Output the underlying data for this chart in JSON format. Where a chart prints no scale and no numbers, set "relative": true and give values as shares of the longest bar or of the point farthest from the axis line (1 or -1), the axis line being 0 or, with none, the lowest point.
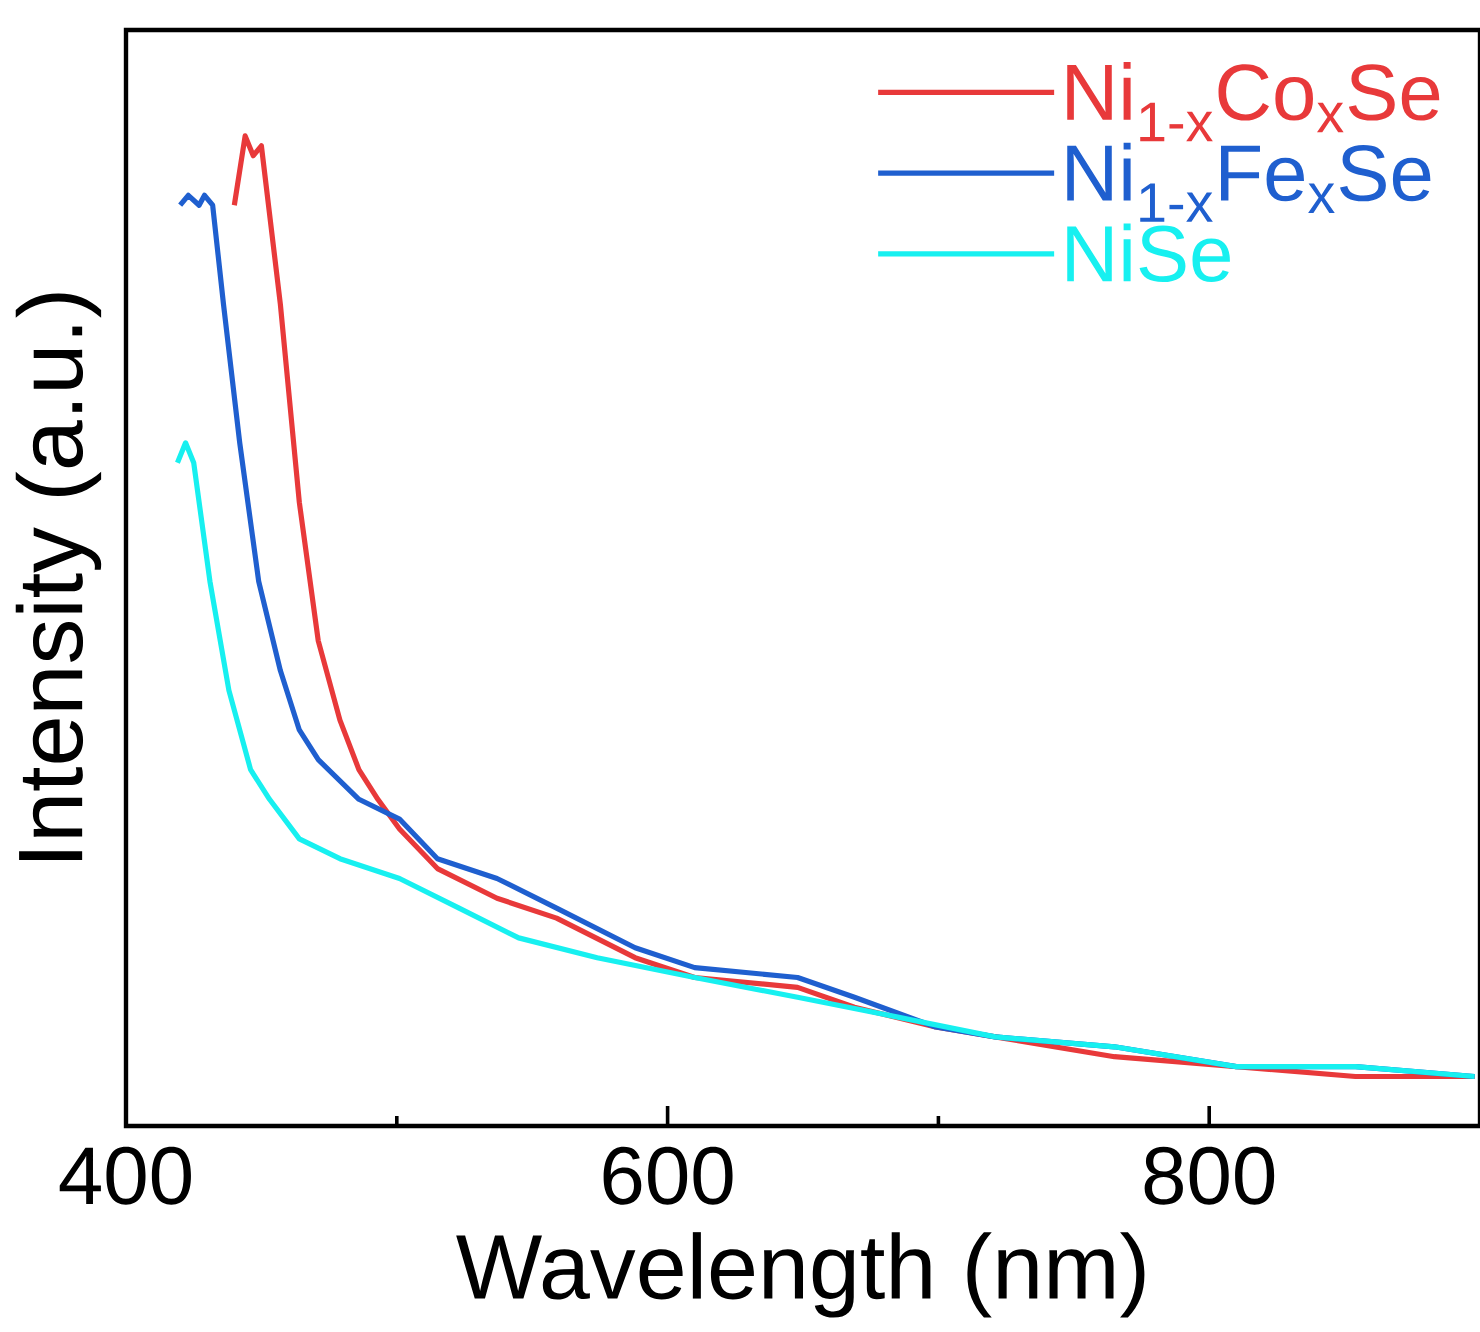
{
  "chart_data": {
    "type": "line",
    "relative": true,
    "xlabel": "Wavelength (nm)",
    "ylabel": "Intensity (a.u.)",
    "xlim": [
      400,
      900
    ],
    "xticks": [
      400,
      600,
      800
    ],
    "legend": "top right",
    "tick_labels": "x",
    "marker": "none",
    "line_style": "solid",
    "series": [
      {
        "name": "Ni$_{1-x}$Co$_{x}$Se",
        "color": "#e8393a",
        "x": [
          440,
          444,
          447,
          450,
          457,
          464,
          471,
          479,
          486,
          493,
          501,
          515,
          537,
          559,
          588,
          610,
          648,
          669,
          699,
          721,
          765,
          810,
          854,
          898
        ],
        "values": [
          0.93,
          1.0,
          0.98,
          0.99,
          0.83,
          0.63,
          0.49,
          0.41,
          0.36,
          0.33,
          0.3,
          0.26,
          0.23,
          0.21,
          0.17,
          0.15,
          0.14,
          0.12,
          0.1,
          0.09,
          0.07,
          0.06,
          0.05,
          0.05
        ]
      },
      {
        "name": "Ni$_{1-x}$Fe$_{x}$Se",
        "color": "#1f5fcf",
        "x": [
          420,
          423,
          427,
          429,
          432,
          436,
          442,
          449,
          457,
          464,
          471,
          486,
          501,
          515,
          537,
          559,
          588,
          610,
          648,
          669,
          699,
          721,
          765,
          810,
          854,
          898
        ],
        "values": [
          0.93,
          0.94,
          0.93,
          0.94,
          0.93,
          0.83,
          0.69,
          0.55,
          0.46,
          0.4,
          0.37,
          0.33,
          0.31,
          0.27,
          0.25,
          0.22,
          0.18,
          0.16,
          0.15,
          0.13,
          0.1,
          0.09,
          0.08,
          0.06,
          0.06,
          0.05
        ]
      },
      {
        "name": "NiSe",
        "color": "#17f0f0",
        "x": [
          419,
          422,
          425,
          431,
          438,
          446,
          453,
          464,
          479,
          501,
          523,
          545,
          574,
          610,
          648,
          685,
          721,
          765,
          810,
          854,
          898
        ],
        "values": [
          0.67,
          0.69,
          0.67,
          0.55,
          0.44,
          0.36,
          0.33,
          0.29,
          0.27,
          0.25,
          0.22,
          0.19,
          0.17,
          0.15,
          0.13,
          0.11,
          0.09,
          0.08,
          0.06,
          0.06,
          0.05
        ]
      }
    ]
  }
}
